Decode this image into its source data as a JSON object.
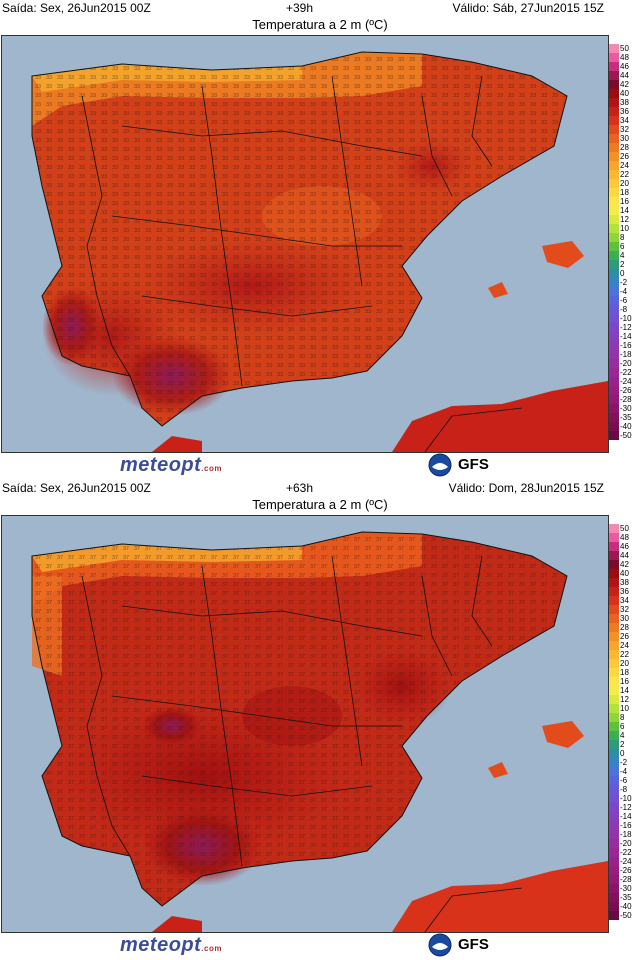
{
  "panels": [
    {
      "issued": "Saída: Sex, 26Jun2015 00Z",
      "step": "+39h",
      "valid": "Válido: Sáb, 27Jun2015 15Z",
      "title": "Temperatura a 2 m (ºC)",
      "hot_spots": [
        "southwest-portugal",
        "guadalquivir-valley",
        "ebro-valley"
      ]
    },
    {
      "issued": "Saída: Sex, 26Jun2015 00Z",
      "step": "+63h",
      "valid": "Válido: Dom, 28Jun2015 15Z",
      "title": "Temperatura a 2 m (ºC)",
      "hot_spots": [
        "guadalquivir-valley",
        "central-plateau",
        "ebro-valley"
      ]
    }
  ],
  "colorbar": {
    "labels": [
      "50",
      "48",
      "46",
      "44",
      "42",
      "40",
      "38",
      "36",
      "34",
      "32",
      "30",
      "28",
      "26",
      "24",
      "22",
      "20",
      "18",
      "16",
      "14",
      "12",
      "10",
      "8",
      "6",
      "4",
      "2",
      "0",
      "-2",
      "-4",
      "-6",
      "-8",
      "-10",
      "-12",
      "-14",
      "-16",
      "-18",
      "-20",
      "-22",
      "-24",
      "-26",
      "-28",
      "-30",
      "-35",
      "-40",
      "-50"
    ],
    "colors": [
      "#f48ab4",
      "#ea5aa0",
      "#c82e7d",
      "#9b1850",
      "#7a0a2a",
      "#9a0d0d",
      "#b01515",
      "#c82218",
      "#d8331a",
      "#e24b1c",
      "#ea6220",
      "#f07a22",
      "#f59027",
      "#f7a52c",
      "#f9b832",
      "#fbca3a",
      "#fcd842",
      "#fde64c",
      "#f4ec4a",
      "#d8ea40",
      "#b5e23a",
      "#8ed63a",
      "#5ec23c",
      "#3aae52",
      "#2e9c7a",
      "#2e8ca4",
      "#3880c8",
      "#4a74d8",
      "#5864dc",
      "#6658d8",
      "#7250d2",
      "#7c46c8",
      "#8540be",
      "#8c3ab4",
      "#9234aa",
      "#962ea0",
      "#982896",
      "#98228a",
      "#961e80",
      "#921a74",
      "#8c1468",
      "#84105c",
      "#7a0c50",
      "#6a0844"
    ]
  },
  "footer": {
    "logo": "meteopt",
    "logo_suffix": ".com",
    "model": "GFS"
  }
}
